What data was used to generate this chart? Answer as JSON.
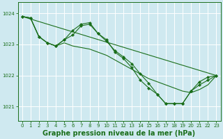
{
  "background_color": "#cfe9f0",
  "grid_color": "#ffffff",
  "line_color": "#1a6e1a",
  "xlabel": "Graphe pression niveau de la mer (hPa)",
  "xlabel_fontsize": 7,
  "ylabel_ticks": [
    1021,
    1022,
    1023,
    1024
  ],
  "xlim": [
    -0.5,
    23.5
  ],
  "ylim": [
    1020.55,
    1024.35
  ],
  "xticks": [
    0,
    1,
    2,
    3,
    4,
    5,
    6,
    7,
    8,
    9,
    10,
    11,
    12,
    13,
    14,
    15,
    16,
    17,
    18,
    19,
    20,
    21,
    22,
    23
  ],
  "line1_x": [
    0,
    23
  ],
  "line1_y": [
    1023.9,
    1022.0
  ],
  "line2_x": [
    0,
    1,
    2,
    3,
    4,
    5,
    6,
    7,
    8,
    9,
    10,
    11,
    12,
    13,
    14,
    15,
    16,
    17,
    18,
    19,
    20,
    21,
    22,
    23
  ],
  "line2_y": [
    1023.9,
    1023.85,
    1023.25,
    1023.05,
    1022.95,
    1023.15,
    1023.45,
    1023.65,
    1023.7,
    1023.35,
    1023.15,
    1022.75,
    1022.55,
    1022.25,
    1021.85,
    1021.6,
    1021.4,
    1021.1,
    1021.1,
    1021.1,
    1021.5,
    1021.7,
    1021.85,
    1022.0
  ],
  "line3_x": [
    0,
    1,
    2,
    3,
    4,
    5,
    6,
    7,
    8,
    9,
    10,
    11,
    12,
    13,
    14,
    15,
    16,
    17,
    18,
    19,
    20,
    21,
    22,
    23
  ],
  "line3_y": [
    1023.9,
    1023.85,
    1023.25,
    1023.05,
    1022.95,
    1023.15,
    1023.3,
    1023.6,
    1023.65,
    1023.35,
    1023.1,
    1022.8,
    1022.6,
    1022.38,
    1022.05,
    1021.75,
    1021.4,
    1021.1,
    1021.1,
    1021.1,
    1021.5,
    1021.8,
    1021.95,
    1022.0
  ],
  "line4_x": [
    0,
    1,
    2,
    3,
    4,
    5,
    6,
    7,
    8,
    9,
    10,
    11,
    12,
    13,
    14,
    15,
    16,
    17,
    18,
    19,
    20,
    21,
    22,
    23
  ],
  "line4_y": [
    1023.9,
    1023.85,
    1023.25,
    1023.05,
    1022.95,
    1023.05,
    1022.95,
    1022.9,
    1022.85,
    1022.75,
    1022.65,
    1022.5,
    1022.35,
    1022.2,
    1022.05,
    1021.9,
    1021.8,
    1021.7,
    1021.6,
    1021.5,
    1021.45,
    1021.55,
    1021.7,
    1022.0
  ]
}
